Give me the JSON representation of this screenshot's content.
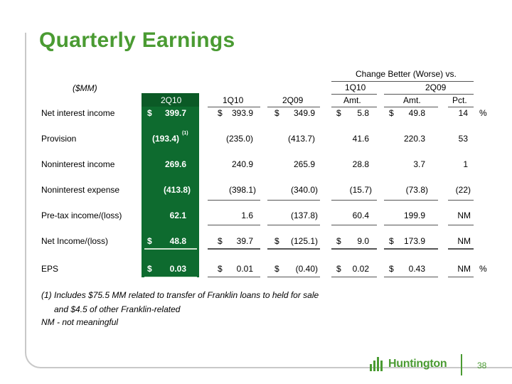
{
  "title": "Quarterly Earnings",
  "units_label": "($MM)",
  "change_header": "Change Better (Worse) vs.",
  "group_1q10": "1Q10",
  "group_2q09": "2Q09",
  "columns": {
    "c2q10": "2Q10",
    "c1q10": "1Q10",
    "c2q09": "2Q09",
    "amt1": "Amt.",
    "amt2": "Amt.",
    "pct": "Pct."
  },
  "rows": [
    {
      "label": "Net interest income",
      "c2q10": "399.7",
      "c1q10": "393.9",
      "c2q09": "349.9",
      "amt1": "5.8",
      "amt2": "49.8",
      "pct": "14",
      "pct_suffix": "%",
      "dollar": true
    },
    {
      "label": "Provision",
      "c2q10": "(193.4)",
      "c2q10_note": "(1)",
      "c1q10": "(235.0)",
      "c2q09": "(413.7)",
      "amt1": "41.6",
      "amt2": "220.3",
      "pct": "53"
    },
    {
      "label": "Noninterest income",
      "c2q10": "269.6",
      "c1q10": "240.9",
      "c2q09": "265.9",
      "amt1": "28.8",
      "amt2": "3.7",
      "pct": "1"
    },
    {
      "label": "Noninterest expense",
      "c2q10": "(413.8)",
      "c1q10": "(398.1)",
      "c2q09": "(340.0)",
      "amt1": "(15.7)",
      "amt2": "(73.8)",
      "pct": "(22)"
    },
    {
      "label": "Pre-tax income/(loss)",
      "c2q10": "62.1",
      "c1q10": "1.6",
      "c2q09": "(137.8)",
      "amt1": "60.4",
      "amt2": "199.9",
      "pct": "NM"
    },
    {
      "label": "Net Income/(loss)",
      "c2q10": "48.8",
      "c1q10": "39.7",
      "c2q09": "(125.1)",
      "amt1": "9.0",
      "amt2": "173.9",
      "pct": "NM",
      "dollar": true
    },
    {
      "label": "EPS",
      "c2q10": "0.03",
      "c1q10": "0.01",
      "c2q09": "(0.40)",
      "amt1": "0.02",
      "amt2": "0.43",
      "pct": "NM",
      "pct_suffix": "%",
      "dollar": true
    }
  ],
  "dollar_sign": "$",
  "footnotes": {
    "line1": "(1) Includes $75.5 MM related to transfer of Franklin loans to held for sale",
    "line2": "and $4.5 of other Franklin-related",
    "line3": "NM - not meaningful"
  },
  "logo_text": "Huntington",
  "page_number": "38",
  "colors": {
    "accent": "#4a9b32",
    "highlight": "#0e6b2f"
  }
}
